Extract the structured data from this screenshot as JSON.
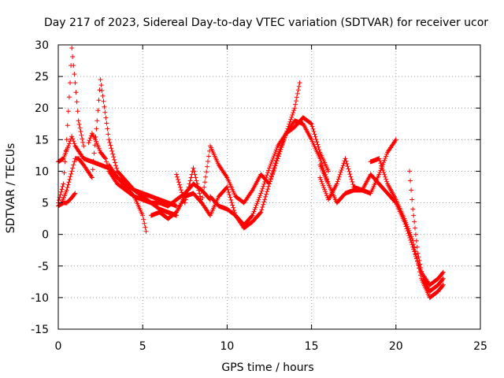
{
  "chart_data": {
    "type": "scatter",
    "title": "Day 217 of 2023, Sidereal Day-to-day VTEC variation (SDTVAR) for receiver ucor",
    "xlabel": "GPS time / hours",
    "ylabel": "SDTVAR / TECUs",
    "xlim": [
      0,
      25
    ],
    "ylim": [
      -15,
      30
    ],
    "xticks": [
      0,
      5,
      10,
      15,
      20,
      25
    ],
    "yticks": [
      -15,
      -10,
      -5,
      0,
      5,
      10,
      15,
      20,
      25,
      30
    ],
    "x_tick_labels": [
      "0",
      "5",
      "10",
      "15",
      "20",
      "25"
    ],
    "y_tick_labels": [
      "-15",
      "-10",
      "-5",
      "0",
      "5",
      "10",
      "15",
      "20",
      "25",
      "30"
    ],
    "grid": true,
    "marker": "+",
    "series_color": "#ff0000",
    "series": [
      {
        "name": "s1",
        "x": [
          0.0,
          0.3,
          0.6,
          0.8,
          1.0,
          1.5,
          2.0,
          2.5,
          3.0,
          3.5,
          4.0,
          4.5,
          5.0,
          5.5,
          6.0,
          6.5,
          7.0
        ],
        "values": [
          11.5,
          12.0,
          14.0,
          15.5,
          14.0,
          12.0,
          11.5,
          11.0,
          10.5,
          9.0,
          8.0,
          7.0,
          6.5,
          6.0,
          5.5,
          5.0,
          4.5
        ]
      },
      {
        "name": "s2",
        "x": [
          0.0,
          0.3,
          0.5,
          0.7,
          0.8,
          1.0,
          1.2,
          1.5
        ],
        "values": [
          5.0,
          8.0,
          15.0,
          24.0,
          29.5,
          24.0,
          18.0,
          14.0
        ]
      },
      {
        "name": "s3",
        "x": [
          0.2,
          0.5,
          0.8,
          1.0,
          1.2,
          1.5,
          2.0,
          2.3,
          2.5,
          3.0,
          3.5,
          4.0,
          4.5,
          5.0,
          5.5,
          6.0,
          6.5,
          7.0
        ],
        "values": [
          5.0,
          7.0,
          10.0,
          12.0,
          12.0,
          11.0,
          9.0,
          18.0,
          24.5,
          15.0,
          10.0,
          8.5,
          7.0,
          6.0,
          5.0,
          4.0,
          3.5,
          3.0
        ]
      },
      {
        "name": "s4",
        "x": [
          0.0,
          0.3,
          0.5,
          0.7,
          1.0
        ],
        "values": [
          4.5,
          5.0,
          5.0,
          5.5,
          6.5
        ]
      },
      {
        "name": "s5",
        "x": [
          1.8,
          2.0,
          2.2,
          2.5,
          2.8,
          3.0,
          3.5,
          4.0,
          4.5,
          5.0,
          5.2
        ],
        "values": [
          14.5,
          16.0,
          15.0,
          13.0,
          12.0,
          10.0,
          8.0,
          7.0,
          6.0,
          3.0,
          0.5
        ]
      },
      {
        "name": "s6",
        "x": [
          3.0,
          3.5,
          4.0,
          4.5,
          5.0,
          5.5,
          6.0,
          6.5,
          7.0,
          7.5,
          8.0,
          8.5,
          9.0
        ],
        "values": [
          11.0,
          9.0,
          7.5,
          6.0,
          5.5,
          5.0,
          5.0,
          4.5,
          5.5,
          6.5,
          8.0,
          7.0,
          5.5
        ]
      },
      {
        "name": "s7",
        "x": [
          7.0,
          7.5,
          8.0,
          8.5,
          9.0,
          9.5,
          10.0,
          10.5,
          11.0,
          11.5,
          12.0,
          12.5,
          13.0,
          13.5,
          14.0,
          14.3
        ],
        "values": [
          9.5,
          5.0,
          10.5,
          5.0,
          14.0,
          11.0,
          9.0,
          6.0,
          5.0,
          7.0,
          9.5,
          8.0,
          12.0,
          16.0,
          20.0,
          24.0
        ]
      },
      {
        "name": "s8",
        "x": [
          5.5,
          6.0,
          6.5,
          7.0,
          7.5,
          8.0,
          8.5,
          9.0,
          9.5,
          10.0,
          10.5,
          11.0,
          11.5,
          12.0,
          12.5,
          13.0,
          13.5,
          14.0,
          14.5,
          15.0,
          15.5,
          16.0
        ],
        "values": [
          3.0,
          3.5,
          2.5,
          3.5,
          6.0,
          6.5,
          5.0,
          3.0,
          6.0,
          7.5,
          3.0,
          1.0,
          2.0,
          3.5,
          8.0,
          12.5,
          16.0,
          18.0,
          17.5,
          15.0,
          12.0,
          8.0
        ]
      },
      {
        "name": "s9",
        "x": [
          9.0,
          9.5,
          10.0,
          10.5,
          11.0,
          11.5,
          12.0,
          12.5,
          13.0,
          13.5,
          14.0,
          14.5,
          15.0,
          15.5,
          16.0
        ],
        "values": [
          6.0,
          4.5,
          4.0,
          3.0,
          1.5,
          3.0,
          6.5,
          10.5,
          14.0,
          16.0,
          17.0,
          18.5,
          17.5,
          13.0,
          10.0
        ]
      },
      {
        "name": "s10",
        "x": [
          15.5,
          16.0,
          16.5,
          17.0,
          17.5,
          18.0,
          18.5,
          19.0,
          19.5,
          20.0
        ],
        "values": [
          9.0,
          5.5,
          8.0,
          12.0,
          7.5,
          7.0,
          6.5,
          9.5,
          13.0,
          15.0
        ]
      },
      {
        "name": "s11",
        "x": [
          15.5,
          16.0,
          16.5,
          17.0,
          17.5,
          18.0,
          18.5,
          19.0,
          19.5,
          20.0,
          20.5,
          21.0,
          21.5,
          22.0,
          22.5,
          22.8
        ],
        "values": [
          11.0,
          8.0,
          5.0,
          6.5,
          7.0,
          7.0,
          9.5,
          8.0,
          6.5,
          5.0,
          2.0,
          -2.0,
          -6.0,
          -8.0,
          -7.0,
          -6.0
        ]
      },
      {
        "name": "s12",
        "x": [
          18.5,
          19.0,
          19.5,
          20.0,
          20.5,
          21.0,
          21.5,
          22.0,
          22.5,
          22.8
        ],
        "values": [
          11.5,
          12.0,
          8.0,
          5.5,
          2.5,
          -1.0,
          -7.0,
          -10.0,
          -9.0,
          -8.0
        ]
      },
      {
        "name": "s13",
        "x": [
          20.8,
          21.0,
          21.3,
          21.6,
          22.0,
          22.5,
          22.8
        ],
        "values": [
          10.0,
          4.0,
          -3.0,
          -7.0,
          -9.0,
          -8.0,
          -7.0
        ]
      }
    ]
  }
}
